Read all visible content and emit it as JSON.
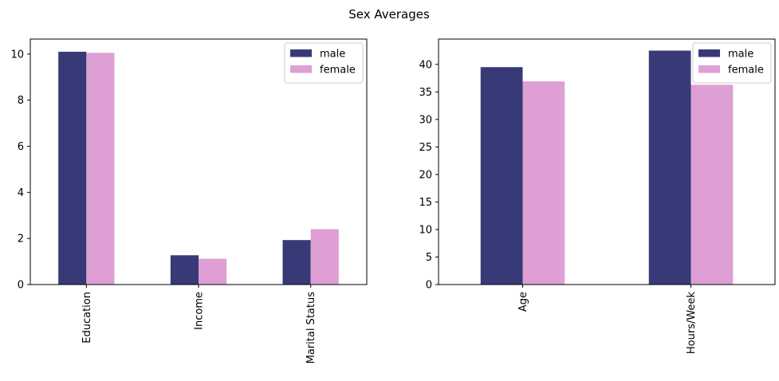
{
  "figure": {
    "title": "Sex Averages"
  },
  "chart_data": [
    {
      "type": "bar",
      "categories": [
        "Education",
        "Income",
        "Marital Status"
      ],
      "series": [
        {
          "name": "male",
          "values": [
            10.1,
            1.27,
            1.93
          ],
          "color": "#383a77"
        },
        {
          "name": "female",
          "values": [
            10.05,
            1.12,
            2.4
          ],
          "color": "#dd9fd4"
        }
      ],
      "ylim": [
        0,
        10.65
      ],
      "yticks": [
        0,
        2,
        4,
        6,
        8,
        10
      ],
      "grid": false,
      "legend": "top-right",
      "tick_label_rotation": 90
    },
    {
      "type": "bar",
      "categories": [
        "Age",
        "Hours/Week"
      ],
      "series": [
        {
          "name": "male",
          "values": [
            39.5,
            42.5
          ],
          "color": "#383a77"
        },
        {
          "name": "female",
          "values": [
            36.9,
            36.3
          ],
          "color": "#dd9fd4"
        }
      ],
      "ylim": [
        0,
        44.6
      ],
      "yticks": [
        0,
        5,
        10,
        15,
        20,
        25,
        30,
        35,
        40
      ],
      "grid": false,
      "legend": "top-right",
      "tick_label_rotation": 90
    }
  ]
}
